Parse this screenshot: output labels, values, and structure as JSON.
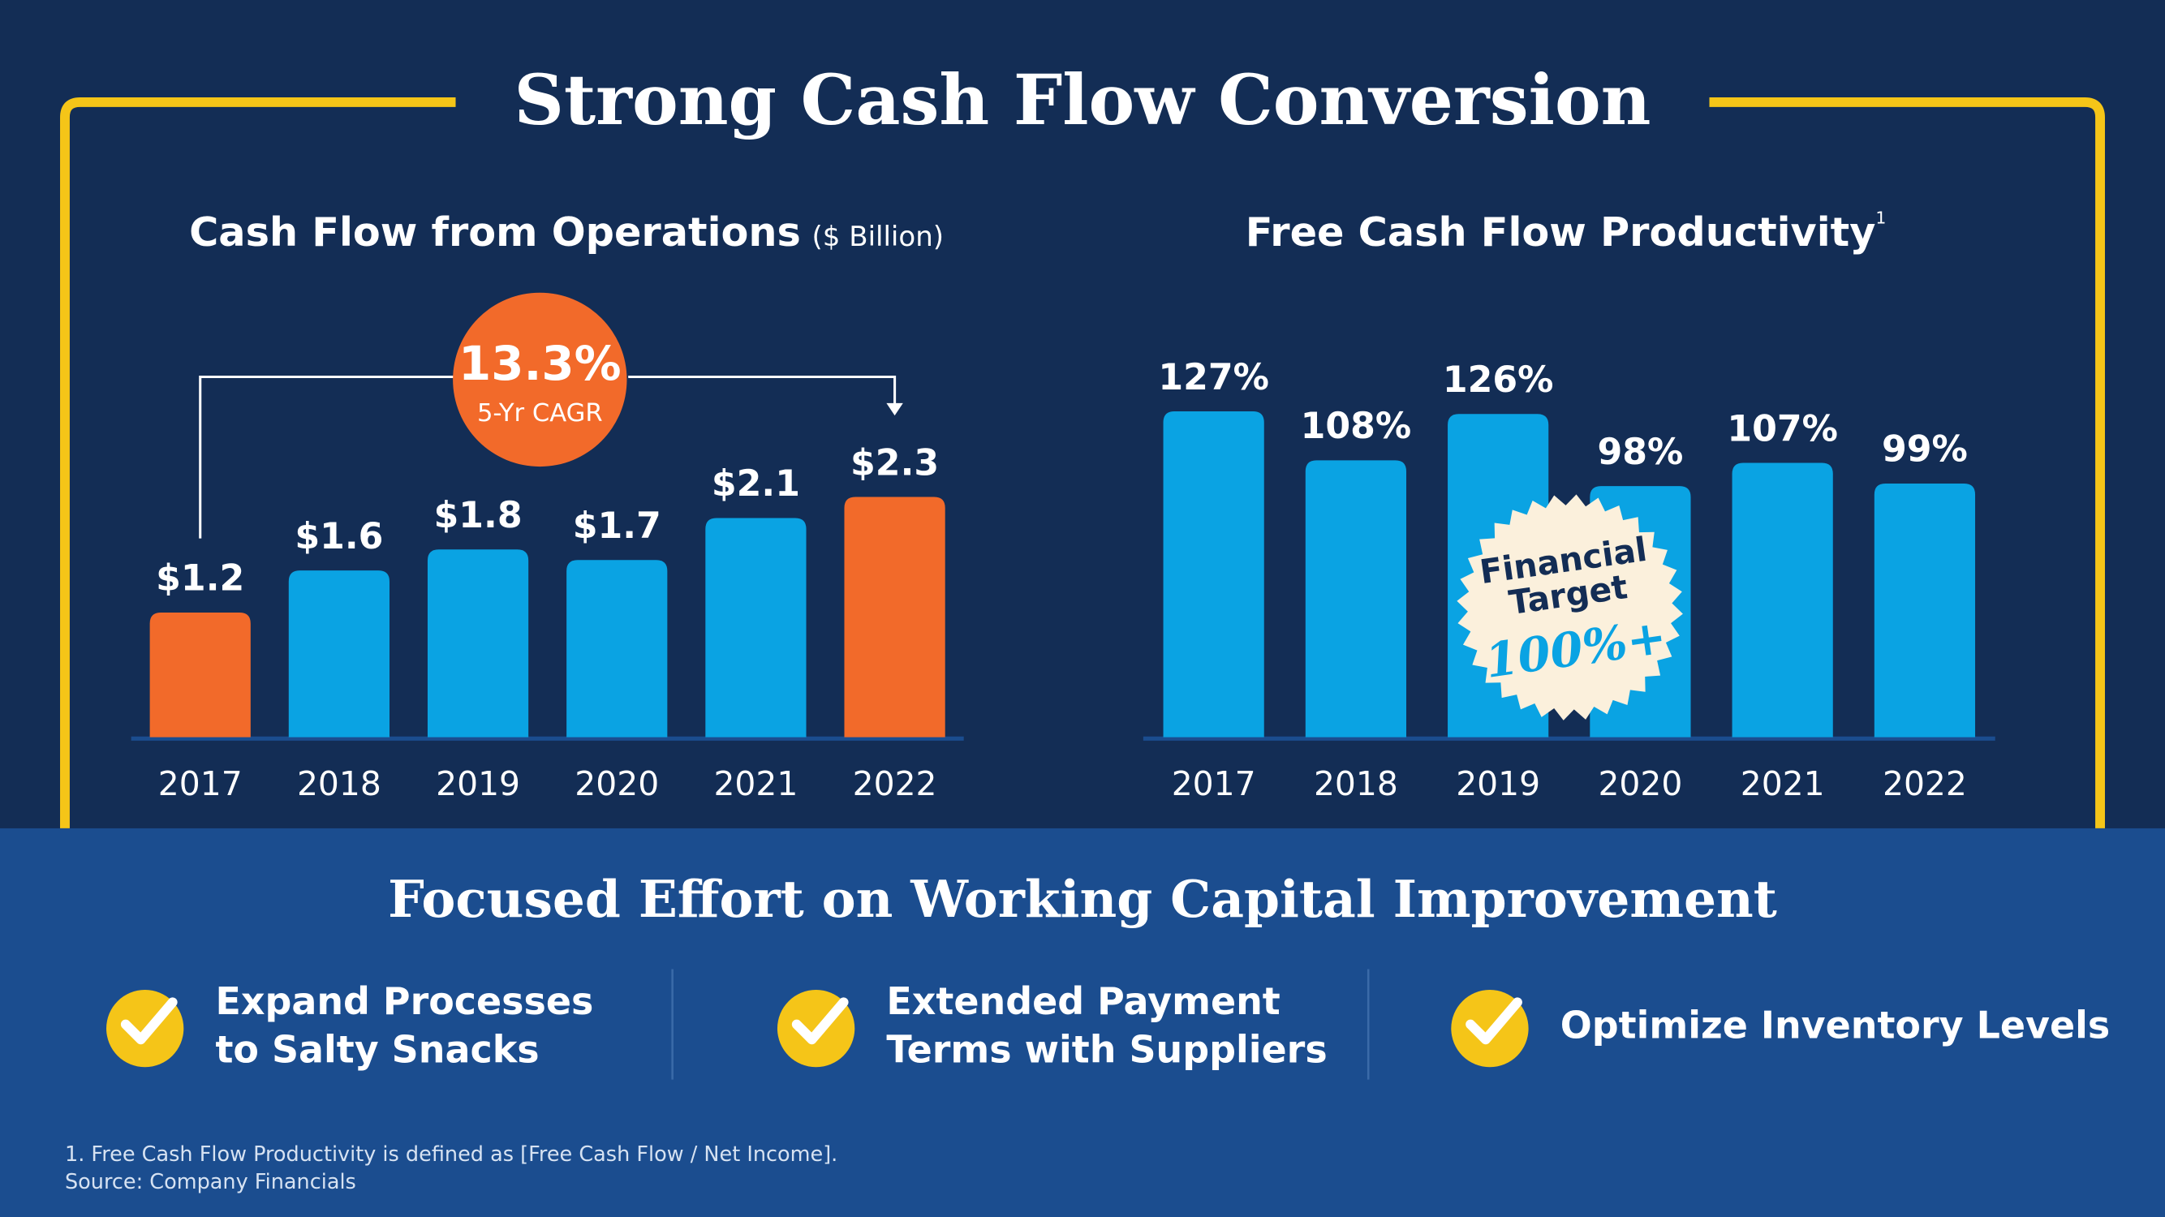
{
  "title": "Strong Cash Flow Conversion",
  "chart_data": [
    {
      "type": "bar",
      "title": "Cash Flow from Operations",
      "unit": "($ Billion)",
      "categories": [
        "2017",
        "2018",
        "2019",
        "2020",
        "2021",
        "2022"
      ],
      "values": [
        1.2,
        1.6,
        1.8,
        1.7,
        2.1,
        2.3
      ],
      "value_labels": [
        "$1.2",
        "$1.6",
        "$1.8",
        "$1.7",
        "$2.1",
        "$2.3"
      ],
      "colors": [
        "#f26a2a",
        "#0aa3e3",
        "#0aa3e3",
        "#0aa3e3",
        "#0aa3e3",
        "#f26a2a"
      ],
      "annotation": {
        "value": "13.3%",
        "label": "5-Yr CAGR",
        "color": "#f26a2a"
      }
    },
    {
      "type": "bar",
      "title": "Free Cash Flow Productivity",
      "footnote_mark": "1",
      "categories": [
        "2017",
        "2018",
        "2019",
        "2020",
        "2021",
        "2022"
      ],
      "values": [
        127,
        108,
        126,
        98,
        107,
        99
      ],
      "value_labels": [
        "127%",
        "108%",
        "126%",
        "98%",
        "107%",
        "99%"
      ],
      "colors": [
        "#0aa3e3",
        "#0aa3e3",
        "#0aa3e3",
        "#0aa3e3",
        "#0aa3e3",
        "#0aa3e3"
      ],
      "annotation": {
        "lines": [
          "Financial",
          "Target"
        ],
        "value": "100%+"
      }
    }
  ],
  "section": {
    "title": "Focused Effort on Working Capital Improvement",
    "items": [
      {
        "lines": [
          "Expand Processes",
          "to Salty Snacks"
        ]
      },
      {
        "lines": [
          "Extended Payment",
          "Terms with Suppliers"
        ]
      },
      {
        "lines": [
          "Optimize Inventory Levels"
        ]
      }
    ]
  },
  "footnotes": [
    "1. Free Cash Flow Productivity is defined as [Free Cash Flow / Net Income].",
    "Source:  Company Financials"
  ]
}
